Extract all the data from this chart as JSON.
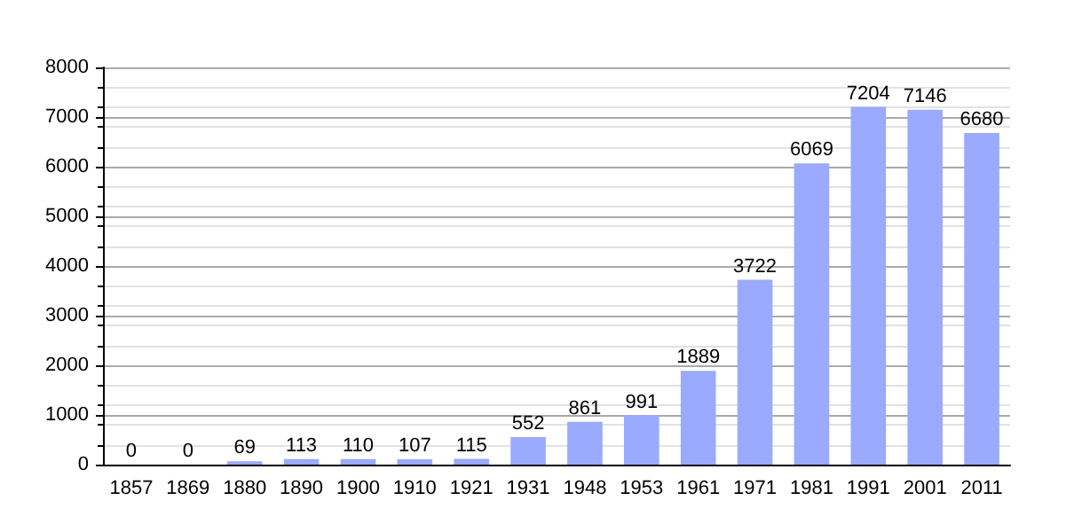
{
  "chart_data": {
    "type": "bar",
    "categories": [
      "1857",
      "1869",
      "1880",
      "1890",
      "1900",
      "1910",
      "1921",
      "1931",
      "1948",
      "1953",
      "1961",
      "1971",
      "1981",
      "1991",
      "2001",
      "2011"
    ],
    "values": [
      0,
      0,
      69,
      113,
      110,
      107,
      115,
      552,
      861,
      991,
      1889,
      3722,
      6069,
      7204,
      7146,
      6680
    ],
    "color": "#99aaff",
    "ylim": [
      0,
      8000
    ],
    "yticks": [
      0,
      1000,
      2000,
      3000,
      4000,
      5000,
      6000,
      7000,
      8000
    ],
    "grid": "y",
    "data_labels": true
  }
}
